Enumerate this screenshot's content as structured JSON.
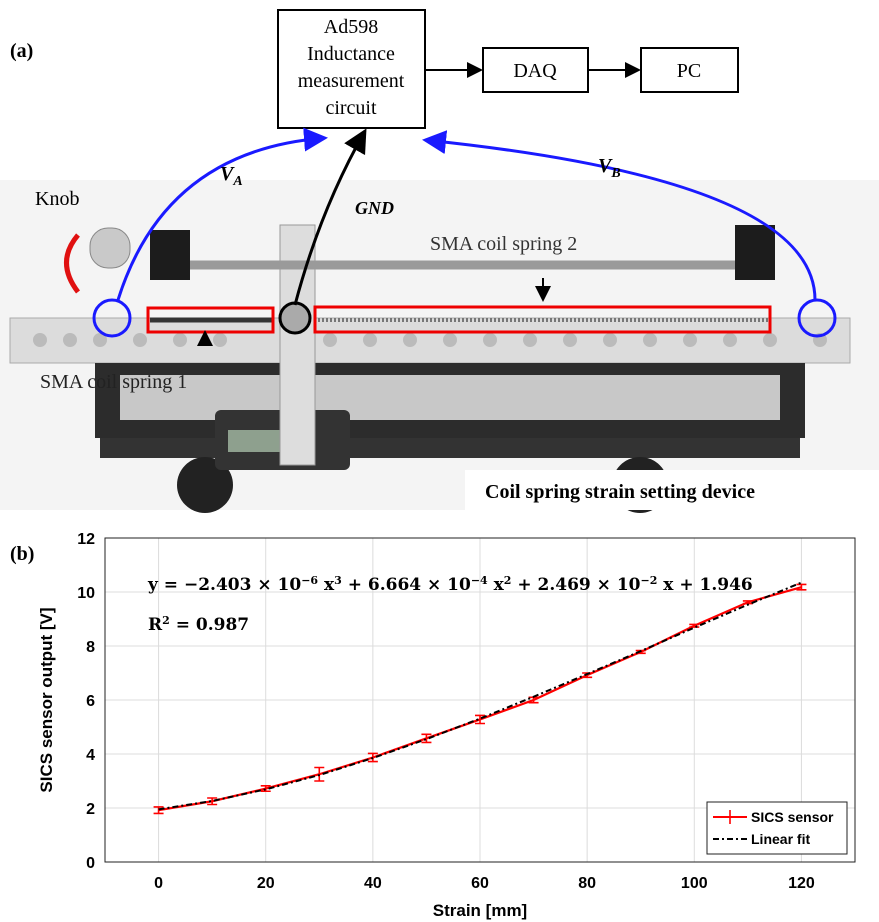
{
  "panel_a": {
    "label": "(a)",
    "circuit_box": {
      "lines": [
        "Ad598",
        "Inductance",
        "measurement",
        "circuit"
      ]
    },
    "daq": "DAQ",
    "pc": "PC",
    "va": {
      "main": "V",
      "sub": "A"
    },
    "vb": {
      "main": "V",
      "sub": "B"
    },
    "gnd": "GND",
    "knob": "Knob",
    "spring2": "SMA coil spring 2",
    "spring1": "SMA coil spring 1",
    "caption": "Coil spring strain setting device"
  },
  "chart_data": {
    "type": "line",
    "label": "(b)",
    "xlabel": "Strain [mm]",
    "ylabel": "SICS sensor output [V]",
    "equation": [
      {
        "text": "y = −2.403 × 10",
        "sup": false
      },
      {
        "text": "−6",
        "sup": true
      },
      {
        "text": " x",
        "sup": false
      },
      {
        "text": "3",
        "sup": true
      },
      {
        "text": " + 6.664 × 10",
        "sup": false
      },
      {
        "text": "−4",
        "sup": true
      },
      {
        "text": " x",
        "sup": false
      },
      {
        "text": "2",
        "sup": true
      },
      {
        "text": " + 2.469 × 10",
        "sup": false
      },
      {
        "text": "−2",
        "sup": true
      },
      {
        "text": " x + 1.946",
        "sup": false
      }
    ],
    "r2": [
      {
        "text": "R",
        "sup": false
      },
      {
        "text": "2",
        "sup": true
      },
      {
        "text": " = 0.987",
        "sup": false
      }
    ],
    "x": [
      0,
      10,
      20,
      30,
      40,
      50,
      60,
      70,
      80,
      90,
      100,
      110,
      120
    ],
    "series": [
      {
        "name": "SICS sensor",
        "color": "#ff0000",
        "values": [
          1.92,
          2.25,
          2.72,
          3.25,
          3.87,
          4.58,
          5.28,
          6.0,
          6.92,
          7.78,
          8.75,
          9.62,
          10.18
        ],
        "errors": [
          0.12,
          0.12,
          0.1,
          0.25,
          0.15,
          0.15,
          0.15,
          0.1,
          0.08,
          0.05,
          0.05,
          0.05,
          0.1
        ]
      },
      {
        "name": "Linear fit",
        "color": "#000000",
        "dashed": true,
        "values": [
          1.95,
          2.26,
          2.69,
          3.22,
          3.85,
          4.55,
          5.31,
          6.12,
          6.96,
          7.81,
          8.68,
          9.53,
          10.35
        ]
      }
    ],
    "xlim": [
      -10,
      130
    ],
    "xticks": [
      0,
      20,
      40,
      60,
      80,
      100,
      120
    ],
    "ylim": [
      0,
      12
    ],
    "yticks": [
      0,
      2,
      4,
      6,
      8,
      10,
      12
    ],
    "grid": true,
    "legend": "lower right"
  }
}
